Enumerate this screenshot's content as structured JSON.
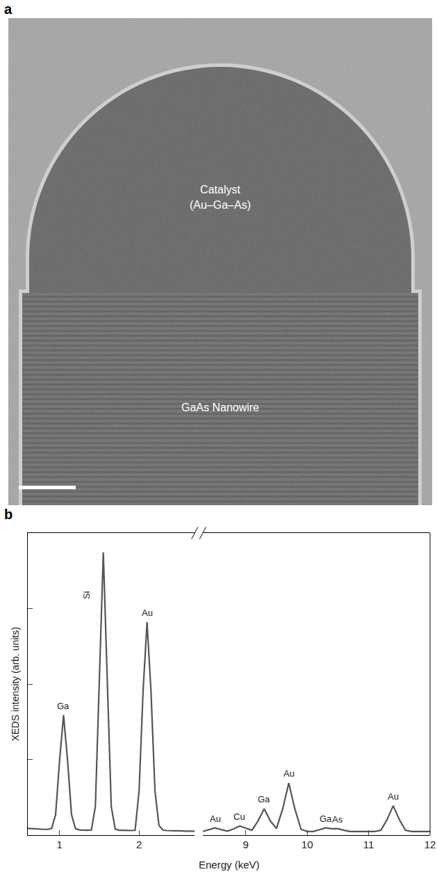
{
  "image_panel": {
    "label": "a",
    "catalyst_label": [
      "Catalyst",
      "(Au–Ga–As)"
    ],
    "nanowire_label": "GaAs Nanowire"
  },
  "chart_data": {
    "panel_label": "b",
    "type": "line",
    "color": "#555555",
    "x_label": "Energy (keV)",
    "y_label": "XEDS intensity (arb. units)",
    "ylim": [
      0,
      1
    ],
    "yticks": [
      0.25,
      0.5,
      0.75
    ],
    "tick_labels": "x",
    "grid": false,
    "segments": [
      {
        "xlim": [
          0.6,
          2.7
        ],
        "xticks": [
          1,
          2
        ],
        "x": [
          0.6,
          0.65,
          0.7,
          0.75,
          0.8,
          0.85,
          0.9,
          0.95,
          1.0,
          1.05,
          1.1,
          1.15,
          1.2,
          1.25,
          1.3,
          1.35,
          1.4,
          1.45,
          1.5,
          1.55,
          1.6,
          1.65,
          1.7,
          1.75,
          1.8,
          1.85,
          1.9,
          1.95,
          2.0,
          2.05,
          2.1,
          2.15,
          2.2,
          2.25,
          2.3,
          2.35,
          2.4,
          2.45,
          2.5,
          2.55,
          2.6,
          2.65,
          2.7
        ],
        "values": [
          0.022,
          0.021,
          0.02,
          0.02,
          0.019,
          0.019,
          0.022,
          0.068,
          0.248,
          0.397,
          0.248,
          0.068,
          0.021,
          0.017,
          0.016,
          0.016,
          0.017,
          0.094,
          0.513,
          0.936,
          0.513,
          0.094,
          0.02,
          0.016,
          0.016,
          0.015,
          0.015,
          0.016,
          0.146,
          0.475,
          0.705,
          0.475,
          0.146,
          0.032,
          0.016,
          0.015,
          0.014,
          0.014,
          0.014,
          0.013,
          0.013,
          0.013,
          0.013
        ],
        "annotations": [
          {
            "text": "Ga",
            "x": 1.05
          },
          {
            "text": "Si",
            "x": 1.55
          },
          {
            "text": "Au",
            "x": 2.1
          }
        ]
      },
      {
        "xlim": [
          8.3,
          12
        ],
        "xticks": [
          9,
          10,
          11,
          12
        ],
        "x": [
          8.3,
          8.4,
          8.5,
          8.6,
          8.7,
          8.8,
          8.9,
          9.0,
          9.1,
          9.2,
          9.3,
          9.4,
          9.5,
          9.6,
          9.7,
          9.8,
          9.9,
          10.0,
          10.1,
          10.2,
          10.3,
          10.4,
          10.5,
          10.6,
          10.7,
          10.8,
          10.9,
          11.0,
          11.1,
          11.2,
          11.3,
          11.4,
          11.5,
          11.6,
          11.7,
          11.8,
          11.9,
          12.0
        ],
        "values": [
          0.012,
          0.018,
          0.024,
          0.018,
          0.013,
          0.02,
          0.03,
          0.023,
          0.016,
          0.047,
          0.087,
          0.047,
          0.022,
          0.086,
          0.172,
          0.086,
          0.019,
          0.012,
          0.012,
          0.018,
          0.024,
          0.021,
          0.021,
          0.016,
          0.012,
          0.012,
          0.012,
          0.012,
          0.012,
          0.016,
          0.051,
          0.097,
          0.051,
          0.016,
          0.012,
          0.012,
          0.012,
          0.012
        ],
        "annotations": [
          {
            "text": "Au",
            "x": 8.5
          },
          {
            "text": "Cu",
            "x": 8.9
          },
          {
            "text": "Ga",
            "x": 9.3
          },
          {
            "text": "Au",
            "x": 9.7
          },
          {
            "text": "Ga",
            "x": 10.3
          },
          {
            "text": "As",
            "x": 10.5
          },
          {
            "text": "Au",
            "x": 11.4
          }
        ]
      }
    ]
  }
}
